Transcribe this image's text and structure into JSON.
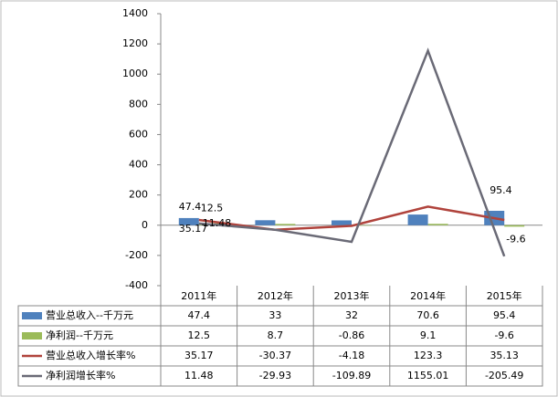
{
  "chart_data": {
    "type": "bar",
    "categories": [
      "2011年",
      "2012年",
      "2013年",
      "2014年",
      "2015年"
    ],
    "series": [
      {
        "name": "营业总收入--千万元",
        "type": "bar",
        "color": "#4f81bd",
        "values": [
          47.4,
          33,
          32,
          70.6,
          95.4
        ]
      },
      {
        "name": "净利润--千万元",
        "type": "bar",
        "color": "#9bbb59",
        "values": [
          12.5,
          8.7,
          -0.86,
          9.1,
          -9.6
        ]
      },
      {
        "name": "营业总收入增长率%",
        "type": "line",
        "color": "#b0433c",
        "values": [
          35.17,
          -30.37,
          -4.18,
          123.3,
          35.13
        ]
      },
      {
        "name": "净利润增长率%",
        "type": "line",
        "color": "#6a6a76",
        "values": [
          11.48,
          -29.93,
          -109.89,
          1155.01,
          -205.49
        ]
      }
    ],
    "ylim": [
      -400,
      1400
    ],
    "yticks": [
      -400,
      -200,
      0,
      200,
      400,
      600,
      800,
      1000,
      1200,
      1400
    ]
  }
}
